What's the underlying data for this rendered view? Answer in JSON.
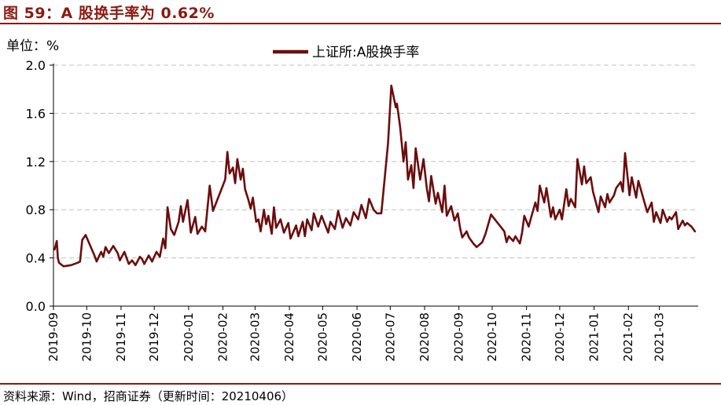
{
  "header": {
    "title": "图 59：A 股换手率为 0.62%"
  },
  "unit_label": "单位：%",
  "source": "资料来源：Wind，招商证券（更新时间：20210406）",
  "colors": {
    "accent": "#8b1a10",
    "series": "#6b0d0d",
    "grid": "#bfbfbf"
  },
  "chart_data": {
    "type": "line",
    "title": "A 股换手率为 0.62%",
    "xlabel": "",
    "ylabel": "%",
    "ylim": [
      0.0,
      2.0
    ],
    "y_ticks": [
      "0.0",
      "0.4",
      "0.8",
      "1.2",
      "1.6",
      "2.0"
    ],
    "x_tick_labels": [
      "2019-09",
      "2019-10",
      "2019-11",
      "2019-12",
      "2020-01",
      "2020-02",
      "2020-03",
      "2020-04",
      "2020-05",
      "2020-06",
      "2020-07",
      "2020-08",
      "2020-09",
      "2020-10",
      "2020-11",
      "2020-12",
      "2021-01",
      "2021-02",
      "2021-03"
    ],
    "grid": "horizontal dashed",
    "legend_position": "top-center",
    "series": [
      {
        "name": "上证所:A股换手率",
        "x": [
          "2019-09-02",
          "2019-09-04",
          "2019-09-05",
          "2019-09-06",
          "2019-09-10",
          "2019-09-17",
          "2019-09-23",
          "2019-09-25",
          "2019-09-27",
          "2019-09-30",
          "2019-10-08",
          "2019-10-10",
          "2019-10-14",
          "2019-10-16",
          "2019-10-18",
          "2019-10-21",
          "2019-10-25",
          "2019-10-29",
          "2019-10-31",
          "2019-11-04",
          "2019-11-06",
          "2019-11-08",
          "2019-11-11",
          "2019-11-14",
          "2019-11-18",
          "2019-11-20",
          "2019-11-22",
          "2019-11-26",
          "2019-11-29",
          "2019-12-03",
          "2019-12-06",
          "2019-12-09",
          "2019-12-11",
          "2019-12-13",
          "2019-12-16",
          "2019-12-19",
          "2019-12-23",
          "2019-12-25",
          "2019-12-27",
          "2019-12-31",
          "2020-01-03",
          "2020-01-07",
          "2020-01-09",
          "2020-01-13",
          "2020-01-16",
          "2020-01-20",
          "2020-01-23",
          "2020-02-03",
          "2020-02-05",
          "2020-02-07",
          "2020-02-10",
          "2020-02-12",
          "2020-02-14",
          "2020-02-17",
          "2020-02-19",
          "2020-02-21",
          "2020-02-24",
          "2020-02-26",
          "2020-02-28",
          "2020-03-02",
          "2020-03-04",
          "2020-03-06",
          "2020-03-09",
          "2020-03-11",
          "2020-03-13",
          "2020-03-16",
          "2020-03-18",
          "2020-03-20",
          "2020-03-24",
          "2020-03-27",
          "2020-03-31",
          "2020-04-02",
          "2020-04-07",
          "2020-04-09",
          "2020-04-13",
          "2020-04-15",
          "2020-04-17",
          "2020-04-21",
          "2020-04-23",
          "2020-04-27",
          "2020-04-30",
          "2020-05-06",
          "2020-05-08",
          "2020-05-12",
          "2020-05-15",
          "2020-05-19",
          "2020-05-22",
          "2020-05-26",
          "2020-05-29",
          "2020-06-02",
          "2020-06-05",
          "2020-06-09",
          "2020-06-12",
          "2020-06-16",
          "2020-06-19",
          "2020-06-23",
          "2020-06-29",
          "2020-07-02",
          "2020-07-06",
          "2020-07-07",
          "2020-07-09",
          "2020-07-10",
          "2020-07-13",
          "2020-07-15",
          "2020-07-17",
          "2020-07-20",
          "2020-07-22",
          "2020-07-24",
          "2020-07-28",
          "2020-07-31",
          "2020-08-03",
          "2020-08-05",
          "2020-08-07",
          "2020-08-11",
          "2020-08-13",
          "2020-08-17",
          "2020-08-19",
          "2020-08-21",
          "2020-08-25",
          "2020-08-28",
          "2020-08-31",
          "2020-09-02",
          "2020-09-04",
          "2020-09-08",
          "2020-09-10",
          "2020-09-14",
          "2020-09-17",
          "2020-09-22",
          "2020-09-25",
          "2020-09-30",
          "2020-10-12",
          "2020-10-14",
          "2020-10-16",
          "2020-10-20",
          "2020-10-22",
          "2020-10-26",
          "2020-10-28",
          "2020-10-30",
          "2020-11-03",
          "2020-11-05",
          "2020-11-09",
          "2020-11-11",
          "2020-11-13",
          "2020-11-17",
          "2020-11-19",
          "2020-11-23",
          "2020-11-25",
          "2020-11-27",
          "2020-12-01",
          "2020-12-03",
          "2020-12-07",
          "2020-12-09",
          "2020-12-11",
          "2020-12-15",
          "2020-12-17",
          "2020-12-21",
          "2020-12-23",
          "2020-12-25",
          "2020-12-29",
          "2020-12-31",
          "2021-01-05",
          "2021-01-07",
          "2021-01-11",
          "2021-01-13",
          "2021-01-15",
          "2021-01-19",
          "2021-01-21",
          "2021-01-25",
          "2021-01-27",
          "2021-01-29",
          "2021-02-02",
          "2021-02-04",
          "2021-02-08",
          "2021-02-10",
          "2021-02-18",
          "2021-02-22",
          "2021-02-24",
          "2021-02-26",
          "2021-03-02",
          "2021-03-04",
          "2021-03-08",
          "2021-03-10",
          "2021-03-12",
          "2021-03-16",
          "2021-03-18",
          "2021-03-22",
          "2021-03-24",
          "2021-03-26",
          "2021-03-30",
          "2021-04-02"
        ],
        "values": [
          0.47,
          0.54,
          0.4,
          0.36,
          0.33,
          0.34,
          0.36,
          0.37,
          0.55,
          0.59,
          0.42,
          0.37,
          0.45,
          0.41,
          0.49,
          0.44,
          0.5,
          0.44,
          0.38,
          0.45,
          0.4,
          0.35,
          0.38,
          0.34,
          0.41,
          0.39,
          0.35,
          0.42,
          0.37,
          0.45,
          0.41,
          0.56,
          0.48,
          0.82,
          0.64,
          0.59,
          0.7,
          0.83,
          0.7,
          0.88,
          0.61,
          0.74,
          0.6,
          0.66,
          0.62,
          1.0,
          0.79,
          1.05,
          1.28,
          1.1,
          1.15,
          1.02,
          1.22,
          1.05,
          1.14,
          0.97,
          0.88,
          0.81,
          0.9,
          0.7,
          0.72,
          0.62,
          0.8,
          0.68,
          0.75,
          0.6,
          0.82,
          0.65,
          0.72,
          0.61,
          0.69,
          0.56,
          0.67,
          0.58,
          0.7,
          0.58,
          0.72,
          0.63,
          0.77,
          0.66,
          0.75,
          0.61,
          0.7,
          0.64,
          0.79,
          0.65,
          0.73,
          0.67,
          0.78,
          0.72,
          0.84,
          0.73,
          0.89,
          0.8,
          0.77,
          0.77,
          1.35,
          1.83,
          1.65,
          1.68,
          1.55,
          1.48,
          1.2,
          1.36,
          1.05,
          1.17,
          0.98,
          1.31,
          1.05,
          1.22,
          0.98,
          0.87,
          1.08,
          0.85,
          0.94,
          0.78,
          1.0,
          0.75,
          0.83,
          0.71,
          0.77,
          0.65,
          0.57,
          0.62,
          0.57,
          0.52,
          0.49,
          0.53,
          0.6,
          0.76,
          0.62,
          0.53,
          0.58,
          0.54,
          0.58,
          0.52,
          0.61,
          0.75,
          0.66,
          0.73,
          0.86,
          0.79,
          1.0,
          0.86,
          0.98,
          0.74,
          0.82,
          0.72,
          0.8,
          0.72,
          0.97,
          0.83,
          0.89,
          0.82,
          1.22,
          1.01,
          1.16,
          1.02,
          1.07,
          0.95,
          0.78,
          0.91,
          0.82,
          0.93,
          0.86,
          0.92,
          0.98,
          1.03,
          0.95,
          1.27,
          0.92,
          1.07,
          0.9,
          1.04,
          0.78,
          0.86,
          0.7,
          0.78,
          0.69,
          0.8,
          0.7,
          0.74,
          0.72,
          0.78,
          0.64,
          0.71,
          0.67,
          0.69,
          0.66,
          0.62
        ]
      }
    ]
  }
}
